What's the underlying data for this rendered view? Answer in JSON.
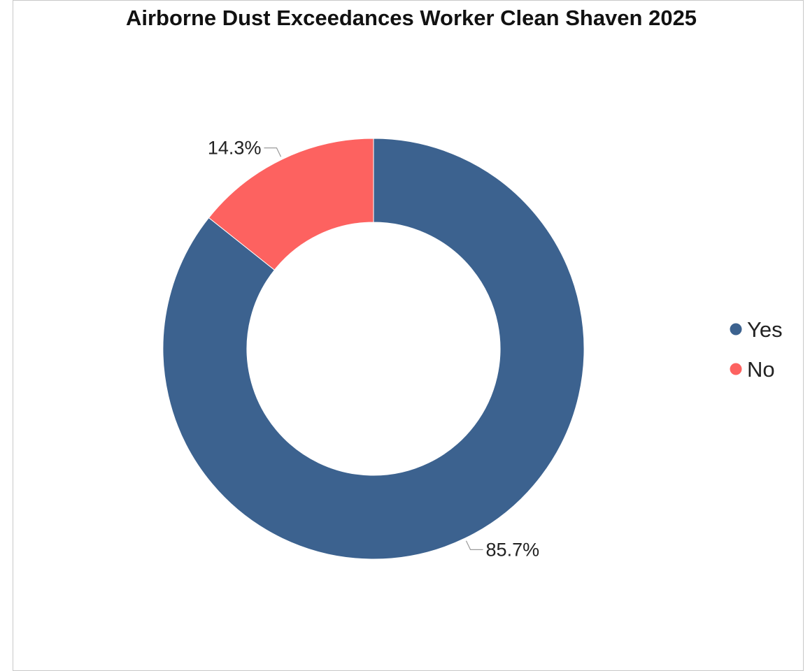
{
  "chart_data": {
    "type": "pie",
    "title": "Airborne Dust Exceedances Worker Clean Shaven 2025",
    "donut": true,
    "legend_position": "right",
    "slices": [
      {
        "label": "Yes",
        "value": 85.7,
        "display": "85.7%",
        "color": "#3c628f"
      },
      {
        "label": "No",
        "value": 14.3,
        "display": "14.3%",
        "color": "#fd6260"
      }
    ]
  }
}
